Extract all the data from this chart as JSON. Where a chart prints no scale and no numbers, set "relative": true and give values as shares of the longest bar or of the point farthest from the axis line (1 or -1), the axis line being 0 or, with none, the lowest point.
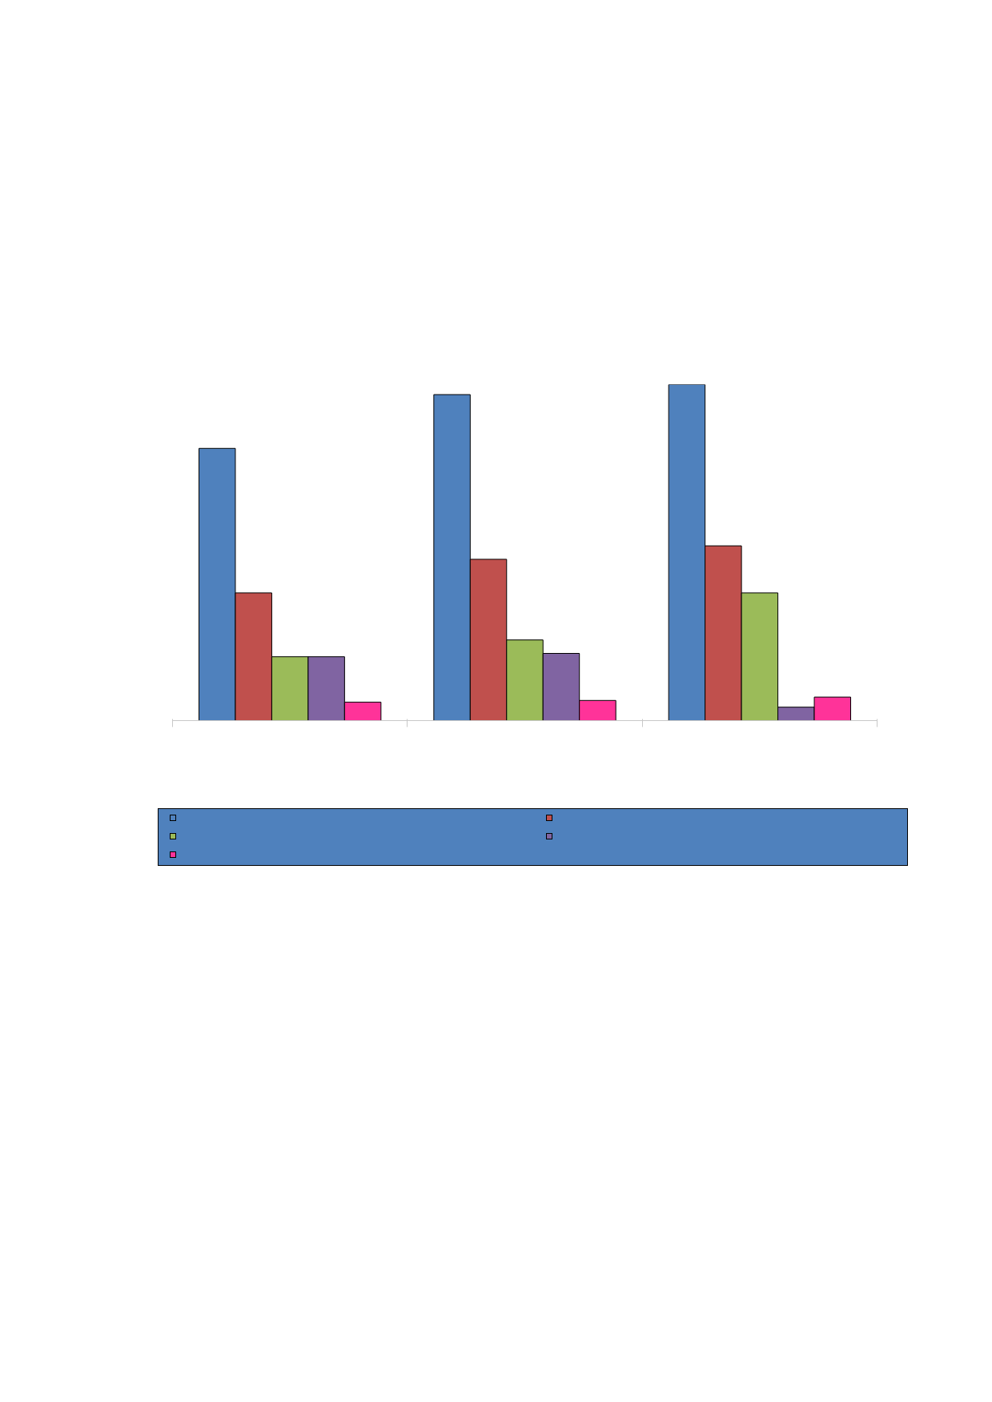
{
  "chart_data": {
    "type": "bar",
    "relative": true,
    "categories": [
      null,
      null,
      null
    ],
    "grid": false,
    "series": [
      {
        "color": "#4f81bd",
        "values": [
          0.81,
          0.97,
          1.0
        ]
      },
      {
        "color": "#c0504d",
        "values": [
          0.38,
          0.48,
          0.52
        ]
      },
      {
        "color": "#9bbb59",
        "values": [
          0.19,
          0.24,
          0.38
        ]
      },
      {
        "color": "#8064a2",
        "values": [
          0.19,
          0.2,
          0.04
        ]
      },
      {
        "color": "#ff3399",
        "values": [
          0.055,
          0.06,
          0.07
        ]
      }
    ]
  }
}
